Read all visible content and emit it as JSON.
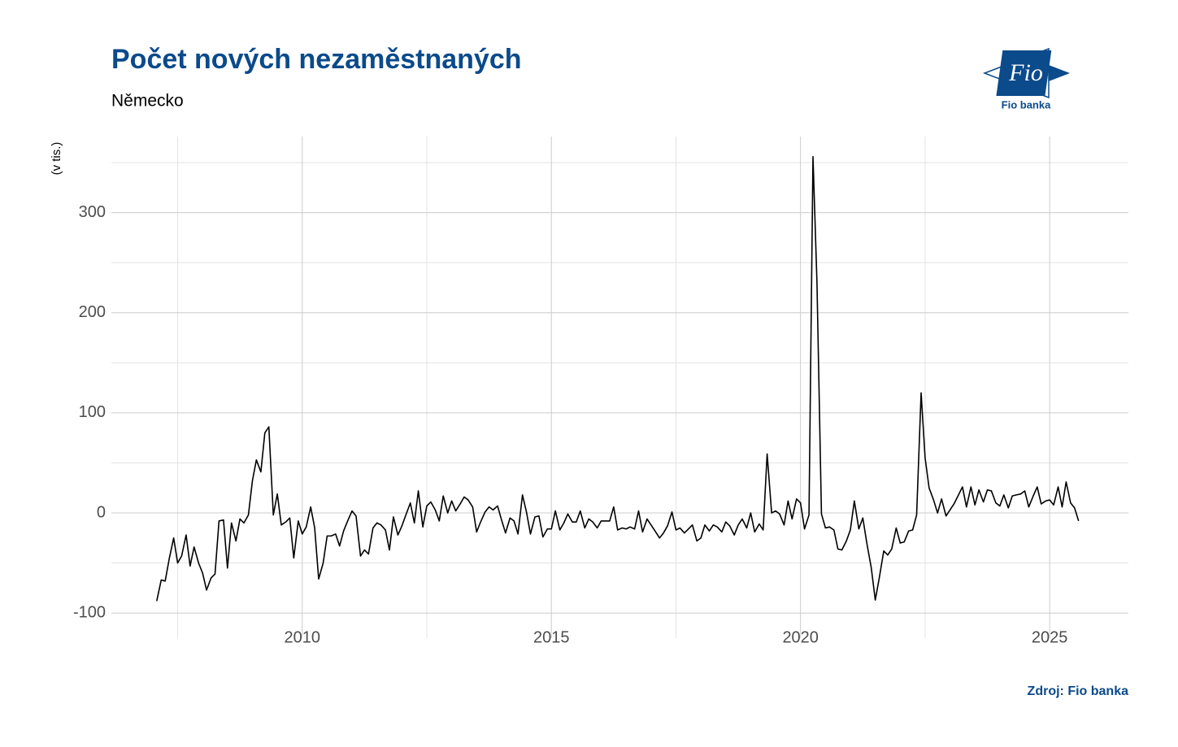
{
  "chart_data": {
    "type": "line",
    "title": "Počet nových nezaměstnaných",
    "subtitle": "Německo",
    "y_label": "(v tis.)",
    "source": "Zdroj: Fio banka",
    "logo": {
      "mark": "Fio",
      "caption": "Fio banka"
    },
    "xlim": [
      2006.17,
      2026.58
    ],
    "ylim": [
      -125,
      376
    ],
    "xticks": [
      2010,
      2015,
      2020,
      2025
    ],
    "yticks": [
      -100,
      0,
      100,
      200,
      300
    ],
    "x_minor_grid": [
      2007.5,
      2012.5,
      2017.5,
      2022.5
    ],
    "y_minor_grid": [
      -50,
      50,
      150,
      250,
      350
    ],
    "grid": true,
    "series": [
      {
        "color": "#000000",
        "x": [
          2007.08,
          2007.17,
          2007.25,
          2007.33,
          2007.42,
          2007.5,
          2007.58,
          2007.67,
          2007.75,
          2007.83,
          2007.92,
          2008,
          2008.08,
          2008.17,
          2008.25,
          2008.33,
          2008.42,
          2008.5,
          2008.58,
          2008.67,
          2008.75,
          2008.83,
          2008.92,
          2009,
          2009.08,
          2009.17,
          2009.25,
          2009.33,
          2009.42,
          2009.5,
          2009.58,
          2009.67,
          2009.75,
          2009.83,
          2009.92,
          2010,
          2010.08,
          2010.17,
          2010.25,
          2010.33,
          2010.42,
          2010.5,
          2010.58,
          2010.67,
          2010.75,
          2010.83,
          2010.92,
          2011,
          2011.08,
          2011.17,
          2011.25,
          2011.33,
          2011.42,
          2011.5,
          2011.58,
          2011.67,
          2011.75,
          2011.83,
          2011.92,
          2012,
          2012.08,
          2012.17,
          2012.25,
          2012.33,
          2012.42,
          2012.5,
          2012.58,
          2012.67,
          2012.75,
          2012.83,
          2012.92,
          2013,
          2013.08,
          2013.17,
          2013.25,
          2013.33,
          2013.42,
          2013.5,
          2013.58,
          2013.67,
          2013.75,
          2013.83,
          2013.92,
          2014,
          2014.08,
          2014.17,
          2014.25,
          2014.33,
          2014.42,
          2014.5,
          2014.58,
          2014.67,
          2014.75,
          2014.83,
          2014.92,
          2015,
          2015.08,
          2015.17,
          2015.25,
          2015.33,
          2015.42,
          2015.5,
          2015.58,
          2015.67,
          2015.75,
          2015.83,
          2015.92,
          2016,
          2016.08,
          2016.17,
          2016.25,
          2016.33,
          2016.42,
          2016.5,
          2016.58,
          2016.67,
          2016.75,
          2016.83,
          2016.92,
          2017,
          2017.08,
          2017.17,
          2017.25,
          2017.33,
          2017.42,
          2017.5,
          2017.58,
          2017.67,
          2017.75,
          2017.83,
          2017.92,
          2018,
          2018.08,
          2018.17,
          2018.25,
          2018.33,
          2018.42,
          2018.5,
          2018.58,
          2018.67,
          2018.75,
          2018.83,
          2018.92,
          2019,
          2019.08,
          2019.17,
          2019.25,
          2019.33,
          2019.42,
          2019.5,
          2019.58,
          2019.67,
          2019.75,
          2019.83,
          2019.92,
          2020,
          2020.08,
          2020.17,
          2020.25,
          2020.33,
          2020.42,
          2020.5,
          2020.58,
          2020.67,
          2020.75,
          2020.83,
          2020.92,
          2021,
          2021.08,
          2021.17,
          2021.25,
          2021.33,
          2021.42,
          2021.5,
          2021.58,
          2021.67,
          2021.75,
          2021.83,
          2021.92,
          2022,
          2022.08,
          2022.17,
          2022.25,
          2022.33,
          2022.42,
          2022.5,
          2022.58,
          2022.67,
          2022.75,
          2022.83,
          2022.92,
          2023,
          2023.08,
          2023.17,
          2023.25,
          2023.33,
          2023.42,
          2023.5,
          2023.58,
          2023.67,
          2023.75,
          2023.83,
          2023.92,
          2024,
          2024.08,
          2024.17,
          2024.25,
          2024.33,
          2024.42,
          2024.5,
          2024.58,
          2024.67,
          2024.75,
          2024.83,
          2024.92,
          2025,
          2025.08,
          2025.17,
          2025.25,
          2025.33,
          2025.42,
          2025.5,
          2025.58
        ],
        "values": [
          -88,
          -67,
          -68,
          -46,
          -25,
          -50,
          -43,
          -22,
          -53,
          -34,
          -50,
          -60,
          -77,
          -65,
          -61,
          -8,
          -7,
          -55,
          -10,
          -28,
          -6,
          -10,
          -2,
          32,
          53,
          41,
          80,
          86,
          -2,
          19,
          -12,
          -9,
          -5,
          -45,
          -8,
          -21,
          -14,
          6,
          -15,
          -66,
          -50,
          -23,
          -23,
          -21,
          -33,
          -18,
          -7,
          2,
          -3,
          -43,
          -37,
          -41,
          -15,
          -10,
          -12,
          -17,
          -37,
          -4,
          -22,
          -13,
          -2,
          10,
          -10,
          22,
          -14,
          7,
          11,
          3,
          -8,
          17,
          0,
          12,
          2,
          9,
          16,
          13,
          6,
          -19,
          -9,
          1,
          6,
          3,
          7,
          -7,
          -20,
          -5,
          -8,
          -21,
          18,
          1,
          -21,
          -4,
          -3,
          -24,
          -16,
          -16,
          2,
          -17,
          -10,
          -1,
          -9,
          -9,
          2,
          -15,
          -6,
          -9,
          -15,
          -8,
          -8,
          -8,
          6,
          -17,
          -15,
          -16,
          -14,
          -16,
          2,
          -19,
          -6,
          -12,
          -18,
          -25,
          -20,
          -13,
          1,
          -17,
          -15,
          -20,
          -16,
          -12,
          -28,
          -25,
          -12,
          -18,
          -12,
          -14,
          -19,
          -9,
          -13,
          -22,
          -12,
          -6,
          -15,
          0,
          -19,
          -11,
          -17,
          59,
          0,
          2,
          -1,
          -12,
          12,
          -6,
          14,
          10,
          -16,
          -2,
          356,
          230,
          -1,
          -15,
          -14,
          -17,
          -36,
          -37,
          -28,
          -17,
          12,
          -16,
          -5,
          -30,
          -55,
          -87,
          -65,
          -38,
          -42,
          -36,
          -15,
          -30,
          -29,
          -18,
          -17,
          -2,
          120,
          55,
          25,
          13,
          0,
          14,
          -3,
          3,
          9,
          18,
          26,
          6,
          26,
          8,
          23,
          11,
          23,
          22,
          10,
          7,
          18,
          5,
          17,
          18,
          19,
          22,
          6,
          17,
          26,
          9,
          12,
          13,
          8,
          26,
          6,
          31,
          10,
          5,
          -8
        ]
      }
    ]
  }
}
